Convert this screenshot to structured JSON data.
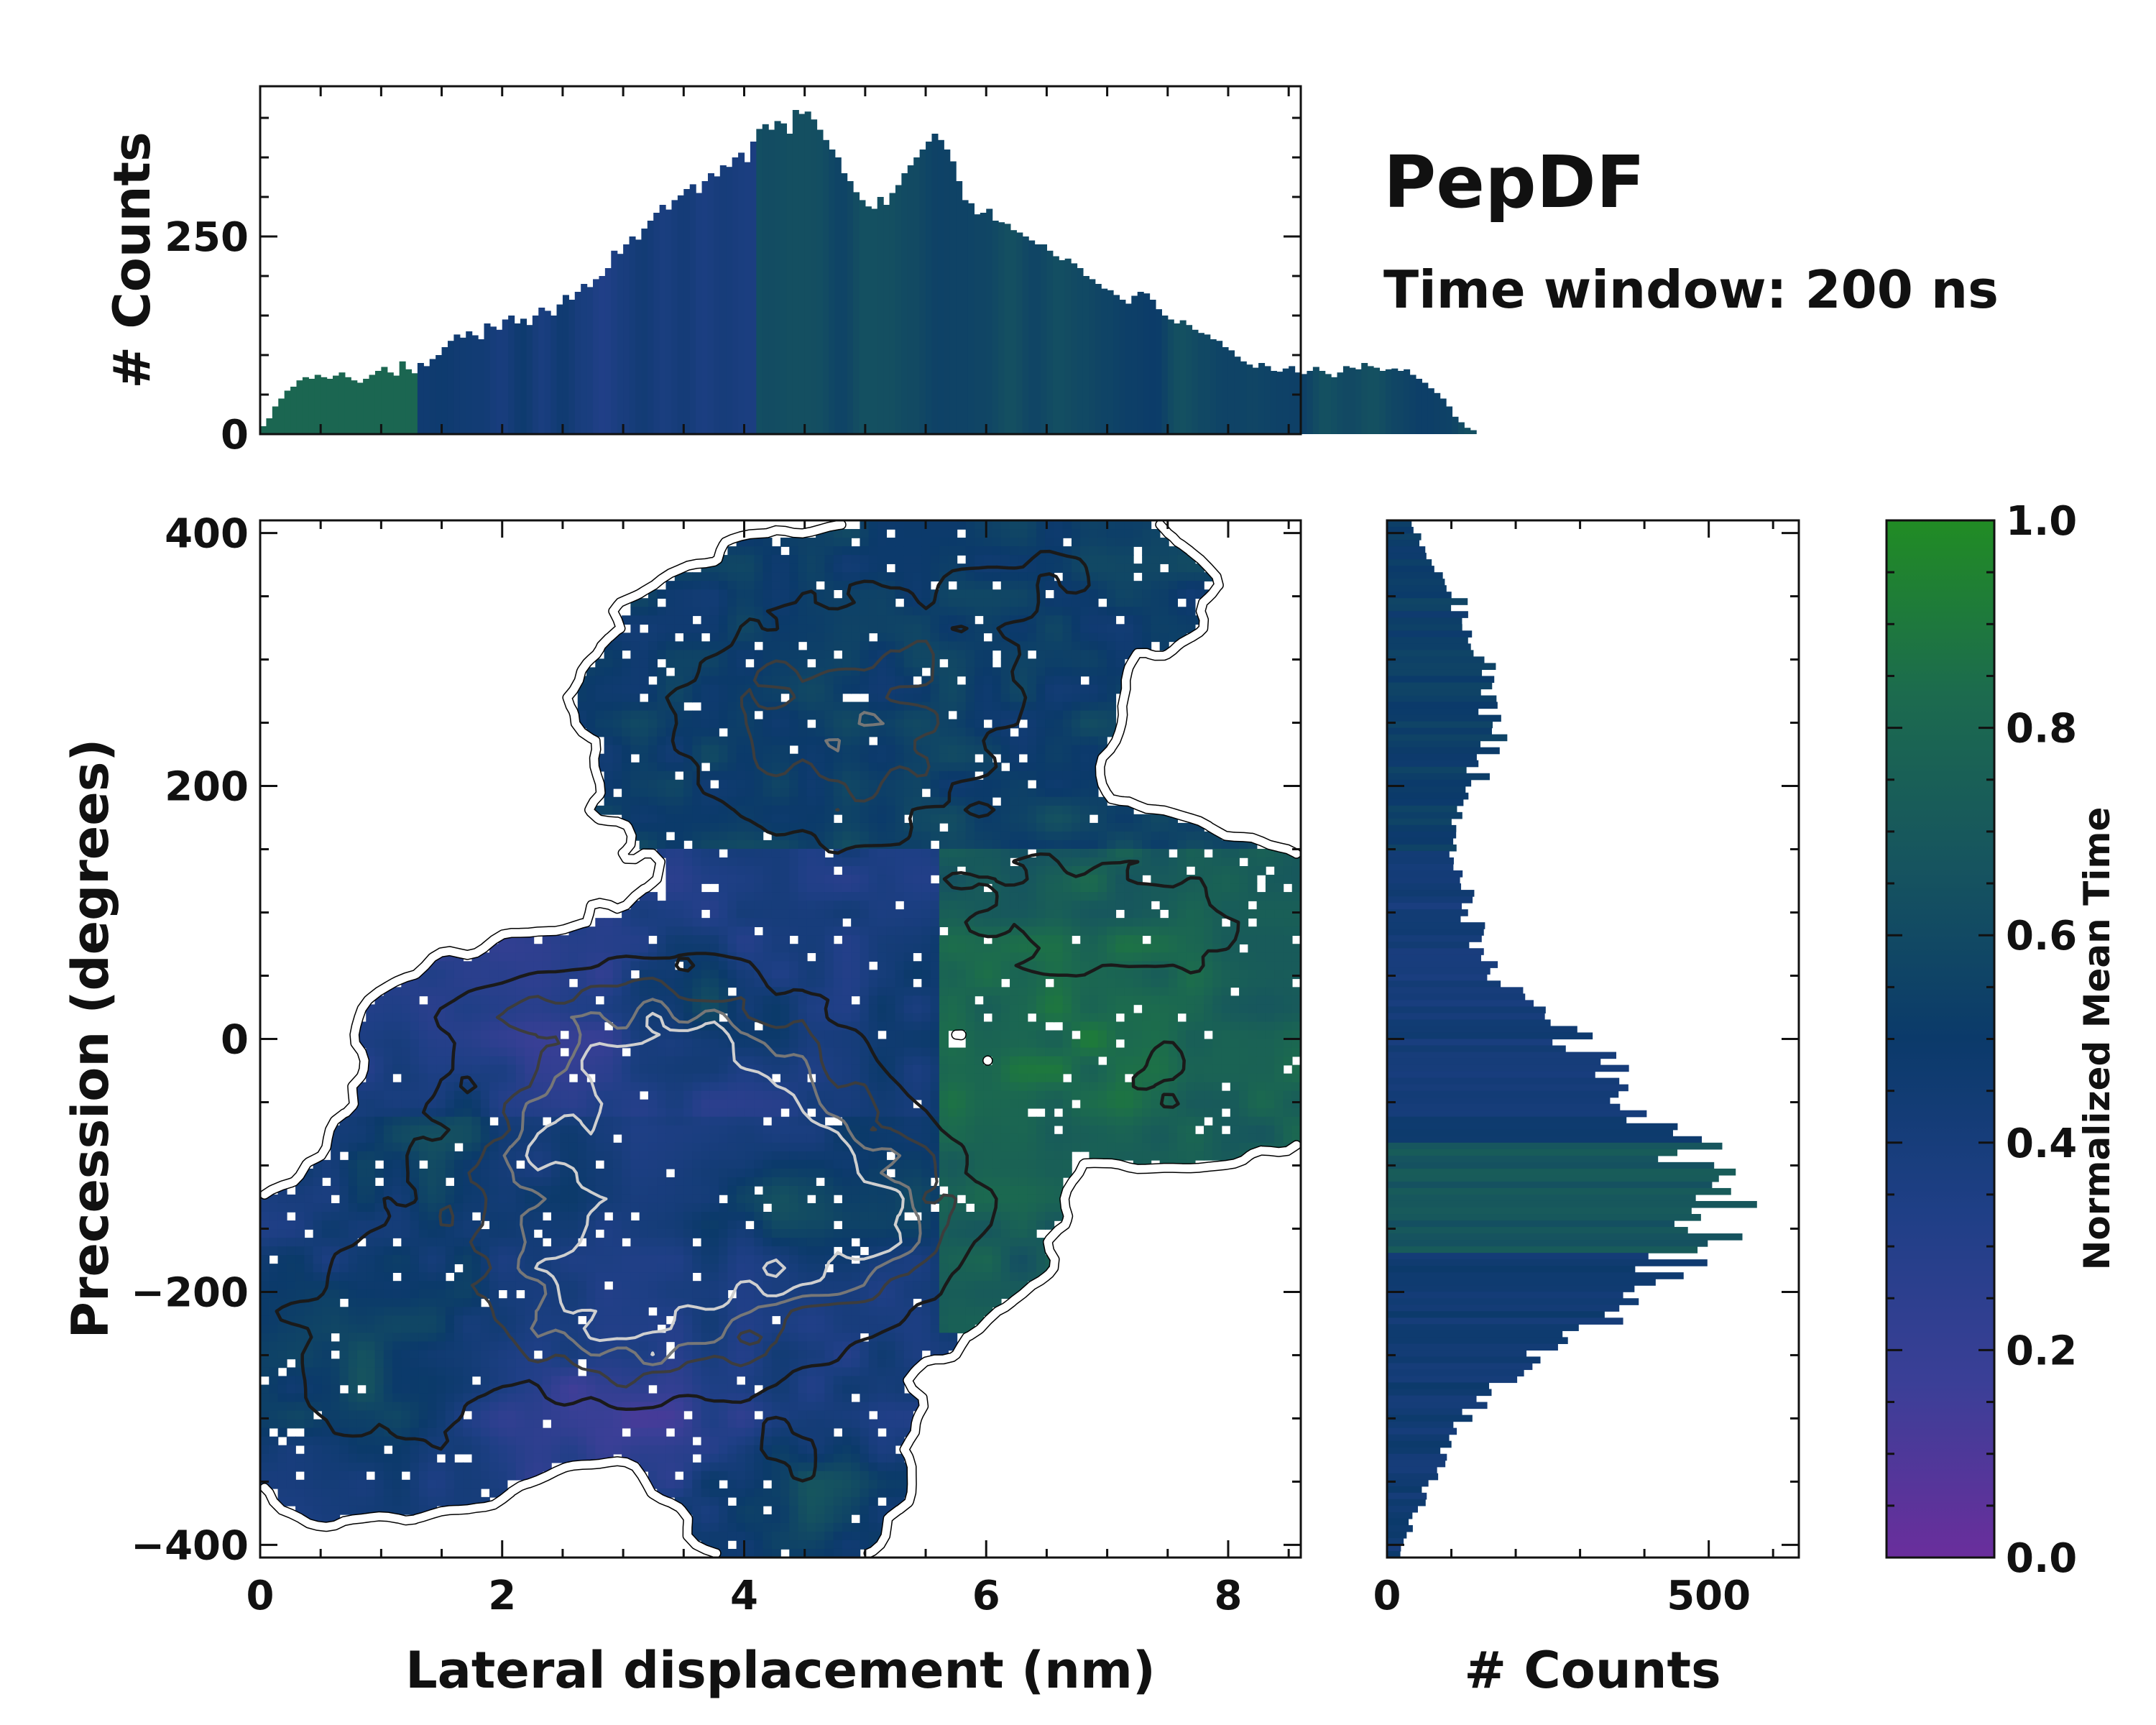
{
  "title": "PepDF",
  "subtitle": "Time window: 200 ns",
  "colormap_stops": [
    "#6a2e9c",
    "#3b3f97",
    "#1f3f86",
    "#0b3a6a",
    "#16545f",
    "#1c6b4e",
    "#218c24"
  ],
  "chart_data": [
    {
      "id": "main",
      "type": "heatmap",
      "xlabel": "Lateral displacement (nm)",
      "ylabel": "Precession (degrees)",
      "xlim": [
        0,
        8.6
      ],
      "ylim": [
        -410,
        410
      ],
      "xticks": [
        0,
        2,
        4,
        6,
        8
      ],
      "yticks": [
        -400,
        -200,
        0,
        200,
        400
      ],
      "xtick_labels": [
        "0",
        "2",
        "4",
        "6",
        "8"
      ],
      "ytick_labels": [
        "−400",
        "−200",
        "0",
        "200",
        "400"
      ],
      "density_blobs": [
        {
          "x": 3.3,
          "y": -110,
          "sx": 1.1,
          "sy": 80,
          "w": 1.0
        },
        {
          "x": 4.7,
          "y": -140,
          "sx": 0.8,
          "sy": 50,
          "w": 0.7
        },
        {
          "x": 3.1,
          "y": -220,
          "sx": 0.6,
          "sy": 40,
          "w": 0.55
        },
        {
          "x": 3.6,
          "y": -20,
          "sx": 0.7,
          "sy": 50,
          "w": 0.45
        },
        {
          "x": 4.8,
          "y": 250,
          "sx": 1.0,
          "sy": 70,
          "w": 0.55
        },
        {
          "x": 7.0,
          "y": 95,
          "sx": 1.0,
          "sy": 40,
          "w": 0.35
        },
        {
          "x": 6.5,
          "y": 360,
          "sx": 0.8,
          "sy": 40,
          "w": 0.2
        },
        {
          "x": 1.0,
          "y": -250,
          "sx": 0.8,
          "sy": 70,
          "w": 0.35
        },
        {
          "x": 7.6,
          "y": -30,
          "sx": 0.8,
          "sy": 40,
          "w": 0.22
        },
        {
          "x": 2.3,
          "y": 20,
          "sx": 0.7,
          "sy": 25,
          "w": 0.22
        },
        {
          "x": 4.4,
          "y": -340,
          "sx": 0.6,
          "sy": 50,
          "w": 0.2
        }
      ],
      "time_regions": [
        {
          "x": 3.0,
          "y": -300,
          "sx": 1.0,
          "sy": 40,
          "v": -0.25
        },
        {
          "x": 2.3,
          "y": 20,
          "sx": 1.0,
          "sy": 50,
          "v": -0.12
        },
        {
          "x": 3.6,
          "y": 30,
          "sx": 0.5,
          "sy": 30,
          "v": 0.25
        },
        {
          "x": 1.4,
          "y": -80,
          "sx": 0.6,
          "sy": 50,
          "v": 0.2
        },
        {
          "x": 1.0,
          "y": -270,
          "sx": 0.8,
          "sy": 60,
          "v": 0.22
        },
        {
          "x": 4.5,
          "y": -130,
          "sx": 0.7,
          "sy": 25,
          "v": 0.2
        },
        {
          "x": 6.8,
          "y": -10,
          "sx": 1.5,
          "sy": 110,
          "v": 0.18
        },
        {
          "x": 4.4,
          "y": -360,
          "sx": 0.6,
          "sy": 50,
          "v": 0.25
        }
      ],
      "contour_levels": [
        0.05,
        0.22,
        0.42,
        0.62,
        0.8
      ]
    },
    {
      "id": "top-histogram",
      "type": "bar",
      "ylabel": "# Counts",
      "ylim": [
        0,
        440
      ],
      "yticks": [
        0,
        250
      ],
      "ytick_labels": [
        "0",
        "250"
      ],
      "x_start": 0.0,
      "bin_width": 0.05,
      "values": [
        10,
        20,
        35,
        45,
        55,
        60,
        68,
        72,
        70,
        75,
        72,
        70,
        74,
        78,
        72,
        68,
        65,
        70,
        75,
        80,
        85,
        78,
        74,
        92,
        82,
        77,
        90,
        86,
        95,
        100,
        110,
        118,
        126,
        122,
        130,
        125,
        120,
        140,
        136,
        132,
        145,
        150,
        140,
        146,
        138,
        150,
        160,
        156,
        150,
        164,
        176,
        170,
        180,
        190,
        186,
        196,
        200,
        210,
        232,
        228,
        240,
        250,
        246,
        260,
        270,
        280,
        290,
        284,
        296,
        302,
        310,
        316,
        305,
        320,
        330,
        326,
        340,
        338,
        350,
        356,
        344,
        370,
        386,
        392,
        385,
        396,
        393,
        380,
        410,
        405,
        408,
        398,
        385,
        372,
        360,
        350,
        330,
        320,
        306,
        296,
        288,
        285,
        300,
        290,
        305,
        315,
        330,
        340,
        350,
        360,
        370,
        380,
        372,
        360,
        345,
        320,
        296,
        292,
        278,
        280,
        285,
        270,
        268,
        266,
        258,
        255,
        250,
        245,
        240,
        240,
        232,
        225,
        220,
        222,
        216,
        210,
        200,
        196,
        190,
        184,
        182,
        176,
        170,
        165,
        175,
        180,
        178,
        170,
        158,
        150,
        145,
        140,
        144,
        138,
        132,
        128,
        126,
        120,
        118,
        110,
        106,
        98,
        92,
        88,
        84,
        90,
        86,
        80,
        79,
        83,
        86,
        78,
        76,
        80,
        85,
        80,
        76,
        72,
        78,
        86,
        84,
        82,
        90,
        86,
        84,
        80,
        82,
        83,
        80,
        82,
        75,
        70,
        65,
        58,
        52,
        45,
        35,
        22,
        15,
        8,
        5
      ]
    },
    {
      "id": "right-histogram",
      "type": "bar",
      "orientation": "horizontal",
      "xlabel": "# Counts",
      "xlim": [
        0,
        640
      ],
      "xticks": [
        0,
        500
      ],
      "xtick_labels": [
        "0",
        "500"
      ]
    },
    {
      "id": "colorbar",
      "type": "colorbar",
      "label": "Normalized Mean Time",
      "range": [
        0.0,
        1.0
      ],
      "ticks": [
        0.0,
        0.2,
        0.4,
        0.6,
        0.8,
        1.0
      ],
      "tick_labels": [
        "0.0",
        "0.2",
        "0.4",
        "0.6",
        "0.8",
        "1.0"
      ]
    }
  ]
}
